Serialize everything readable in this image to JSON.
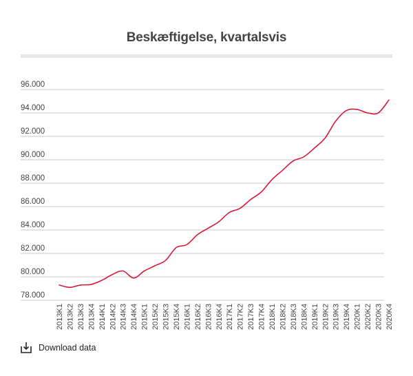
{
  "chart_data": {
    "type": "line",
    "title": "Beskæftigelse, kvartalsvis",
    "xlabel": "",
    "ylabel": "",
    "ylim": [
      78000,
      96000
    ],
    "yticks": [
      "78.000",
      "80.000",
      "82.000",
      "84.000",
      "86.000",
      "88.000",
      "90.000",
      "92.000",
      "94.000",
      "96.000"
    ],
    "grid": true,
    "legend": "none",
    "categories": [
      "2013K1",
      "2013K2",
      "2013K3",
      "2013K4",
      "2014K1",
      "2014K2",
      "2014K3",
      "2014K4",
      "2015K1",
      "2015K2",
      "2015K3",
      "2015K4",
      "2016K1",
      "2016K2",
      "2016K3",
      "2016K4",
      "2017K1",
      "2017K2",
      "2017K3",
      "2017K4",
      "2018K1",
      "2018K2",
      "2018K3",
      "2018K4",
      "2019K1",
      "2019K2",
      "2019K3",
      "2019K4",
      "2020K1",
      "2020K2",
      "2020K3",
      "2020K4"
    ],
    "series": [
      {
        "color": "#d8183a",
        "values": [
          79300,
          79100,
          79300,
          79350,
          79700,
          80200,
          80500,
          79900,
          80500,
          80950,
          81400,
          82500,
          82750,
          83600,
          84150,
          84700,
          85500,
          85850,
          86600,
          87250,
          88300,
          89100,
          89900,
          90250,
          91000,
          91850,
          93300,
          94200,
          94300,
          94000,
          94000,
          95100
        ]
      }
    ]
  },
  "footer": {
    "download_label": "Download data",
    "download_icon": "download-icon"
  }
}
